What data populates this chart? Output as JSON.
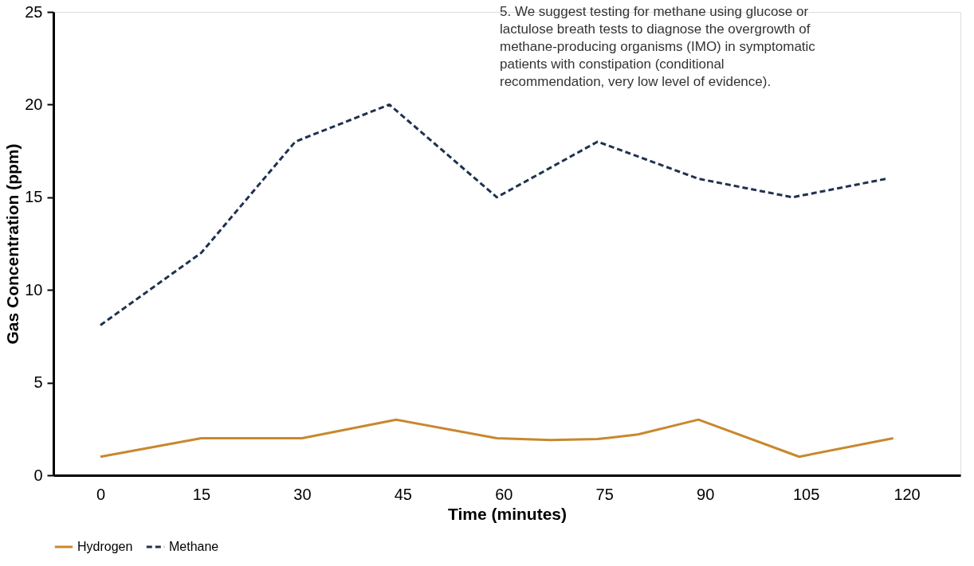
{
  "chart_data": {
    "type": "line",
    "xlabel": "Time (minutes)",
    "ylabel": "Gas Concentration (ppm)",
    "xlim": [
      -7,
      128
    ],
    "xticks": [
      0,
      15,
      30,
      45,
      60,
      75,
      90,
      105,
      120
    ],
    "ylim": [
      0,
      25
    ],
    "yticks": [
      0,
      5,
      10,
      15,
      20,
      25
    ],
    "grid": false,
    "legend": "bottom",
    "marker": "none",
    "series": [
      {
        "name": "Hydrogen",
        "color": "#c8882f",
        "line_style": "solid",
        "x": [
          0,
          15,
          30,
          44,
          59,
          67,
          74,
          80,
          89,
          104,
          118
        ],
        "values": [
          1,
          2,
          2,
          3,
          2,
          1.9,
          1.95,
          2.2,
          3,
          1,
          2
        ]
      },
      {
        "name": "Methane",
        "color": "#1f3150",
        "line_style": "dashed",
        "x": [
          0,
          15,
          29,
          43,
          59,
          74,
          89,
          103,
          117
        ],
        "values": [
          8.1,
          12,
          18,
          20,
          15,
          18,
          16,
          15,
          16
        ]
      }
    ],
    "annotations": [
      "5. We suggest testing for methane using glucose or lactulose breath tests to diagnose the overgrowth of methane-producing organisms (IMO) in symptomatic patients with constipation (conditional recommendation, very low level of evidence)."
    ]
  }
}
